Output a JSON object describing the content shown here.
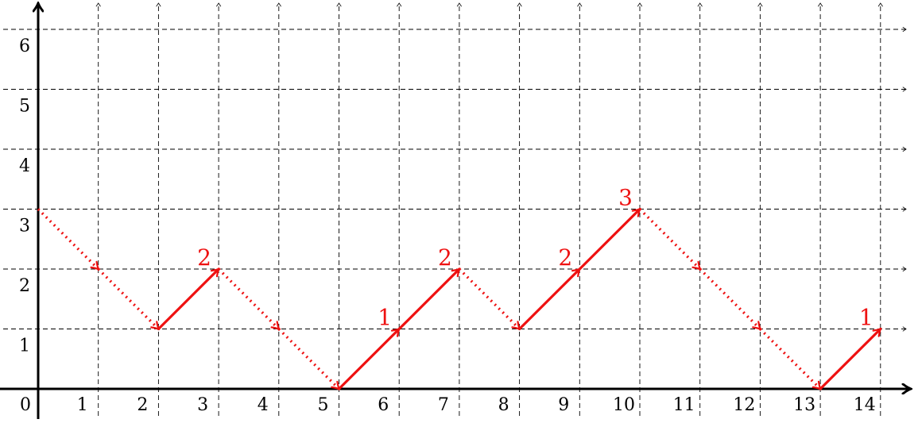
{
  "chart_data": {
    "type": "line",
    "title": "",
    "xlabel": "",
    "ylabel": "",
    "grid": true,
    "xlim": [
      0,
      14
    ],
    "ylim": [
      0,
      6
    ],
    "x_ticks": [
      "0",
      "1",
      "2",
      "3",
      "4",
      "5",
      "6",
      "7",
      "8",
      "9",
      "10",
      "11",
      "12",
      "13",
      "14"
    ],
    "y_ticks": [
      "1",
      "2",
      "3",
      "4",
      "5",
      "6"
    ],
    "path": {
      "x": [
        0,
        1,
        2,
        3,
        4,
        5,
        6,
        7,
        8,
        9,
        10,
        11,
        12,
        13,
        14
      ],
      "y": [
        3,
        2,
        1,
        2,
        1,
        0,
        1,
        2,
        1,
        2,
        3,
        2,
        1,
        0,
        1
      ]
    },
    "step_styles": [
      "dotted",
      "dotted",
      "solid",
      "dotted",
      "dotted",
      "solid",
      "solid",
      "dotted",
      "solid",
      "solid",
      "dotted",
      "dotted",
      "dotted",
      "solid"
    ],
    "step_labels": [
      {
        "x": 3,
        "y": 2,
        "text": "2"
      },
      {
        "x": 6,
        "y": 1,
        "text": "1"
      },
      {
        "x": 7,
        "y": 2,
        "text": "2"
      },
      {
        "x": 9,
        "y": 2,
        "text": "2"
      },
      {
        "x": 10,
        "y": 3,
        "text": "3"
      },
      {
        "x": 14,
        "y": 1,
        "text": "1"
      }
    ]
  },
  "colors": {
    "path": "#ee1111",
    "axis": "#000000",
    "grid": "#000000"
  }
}
